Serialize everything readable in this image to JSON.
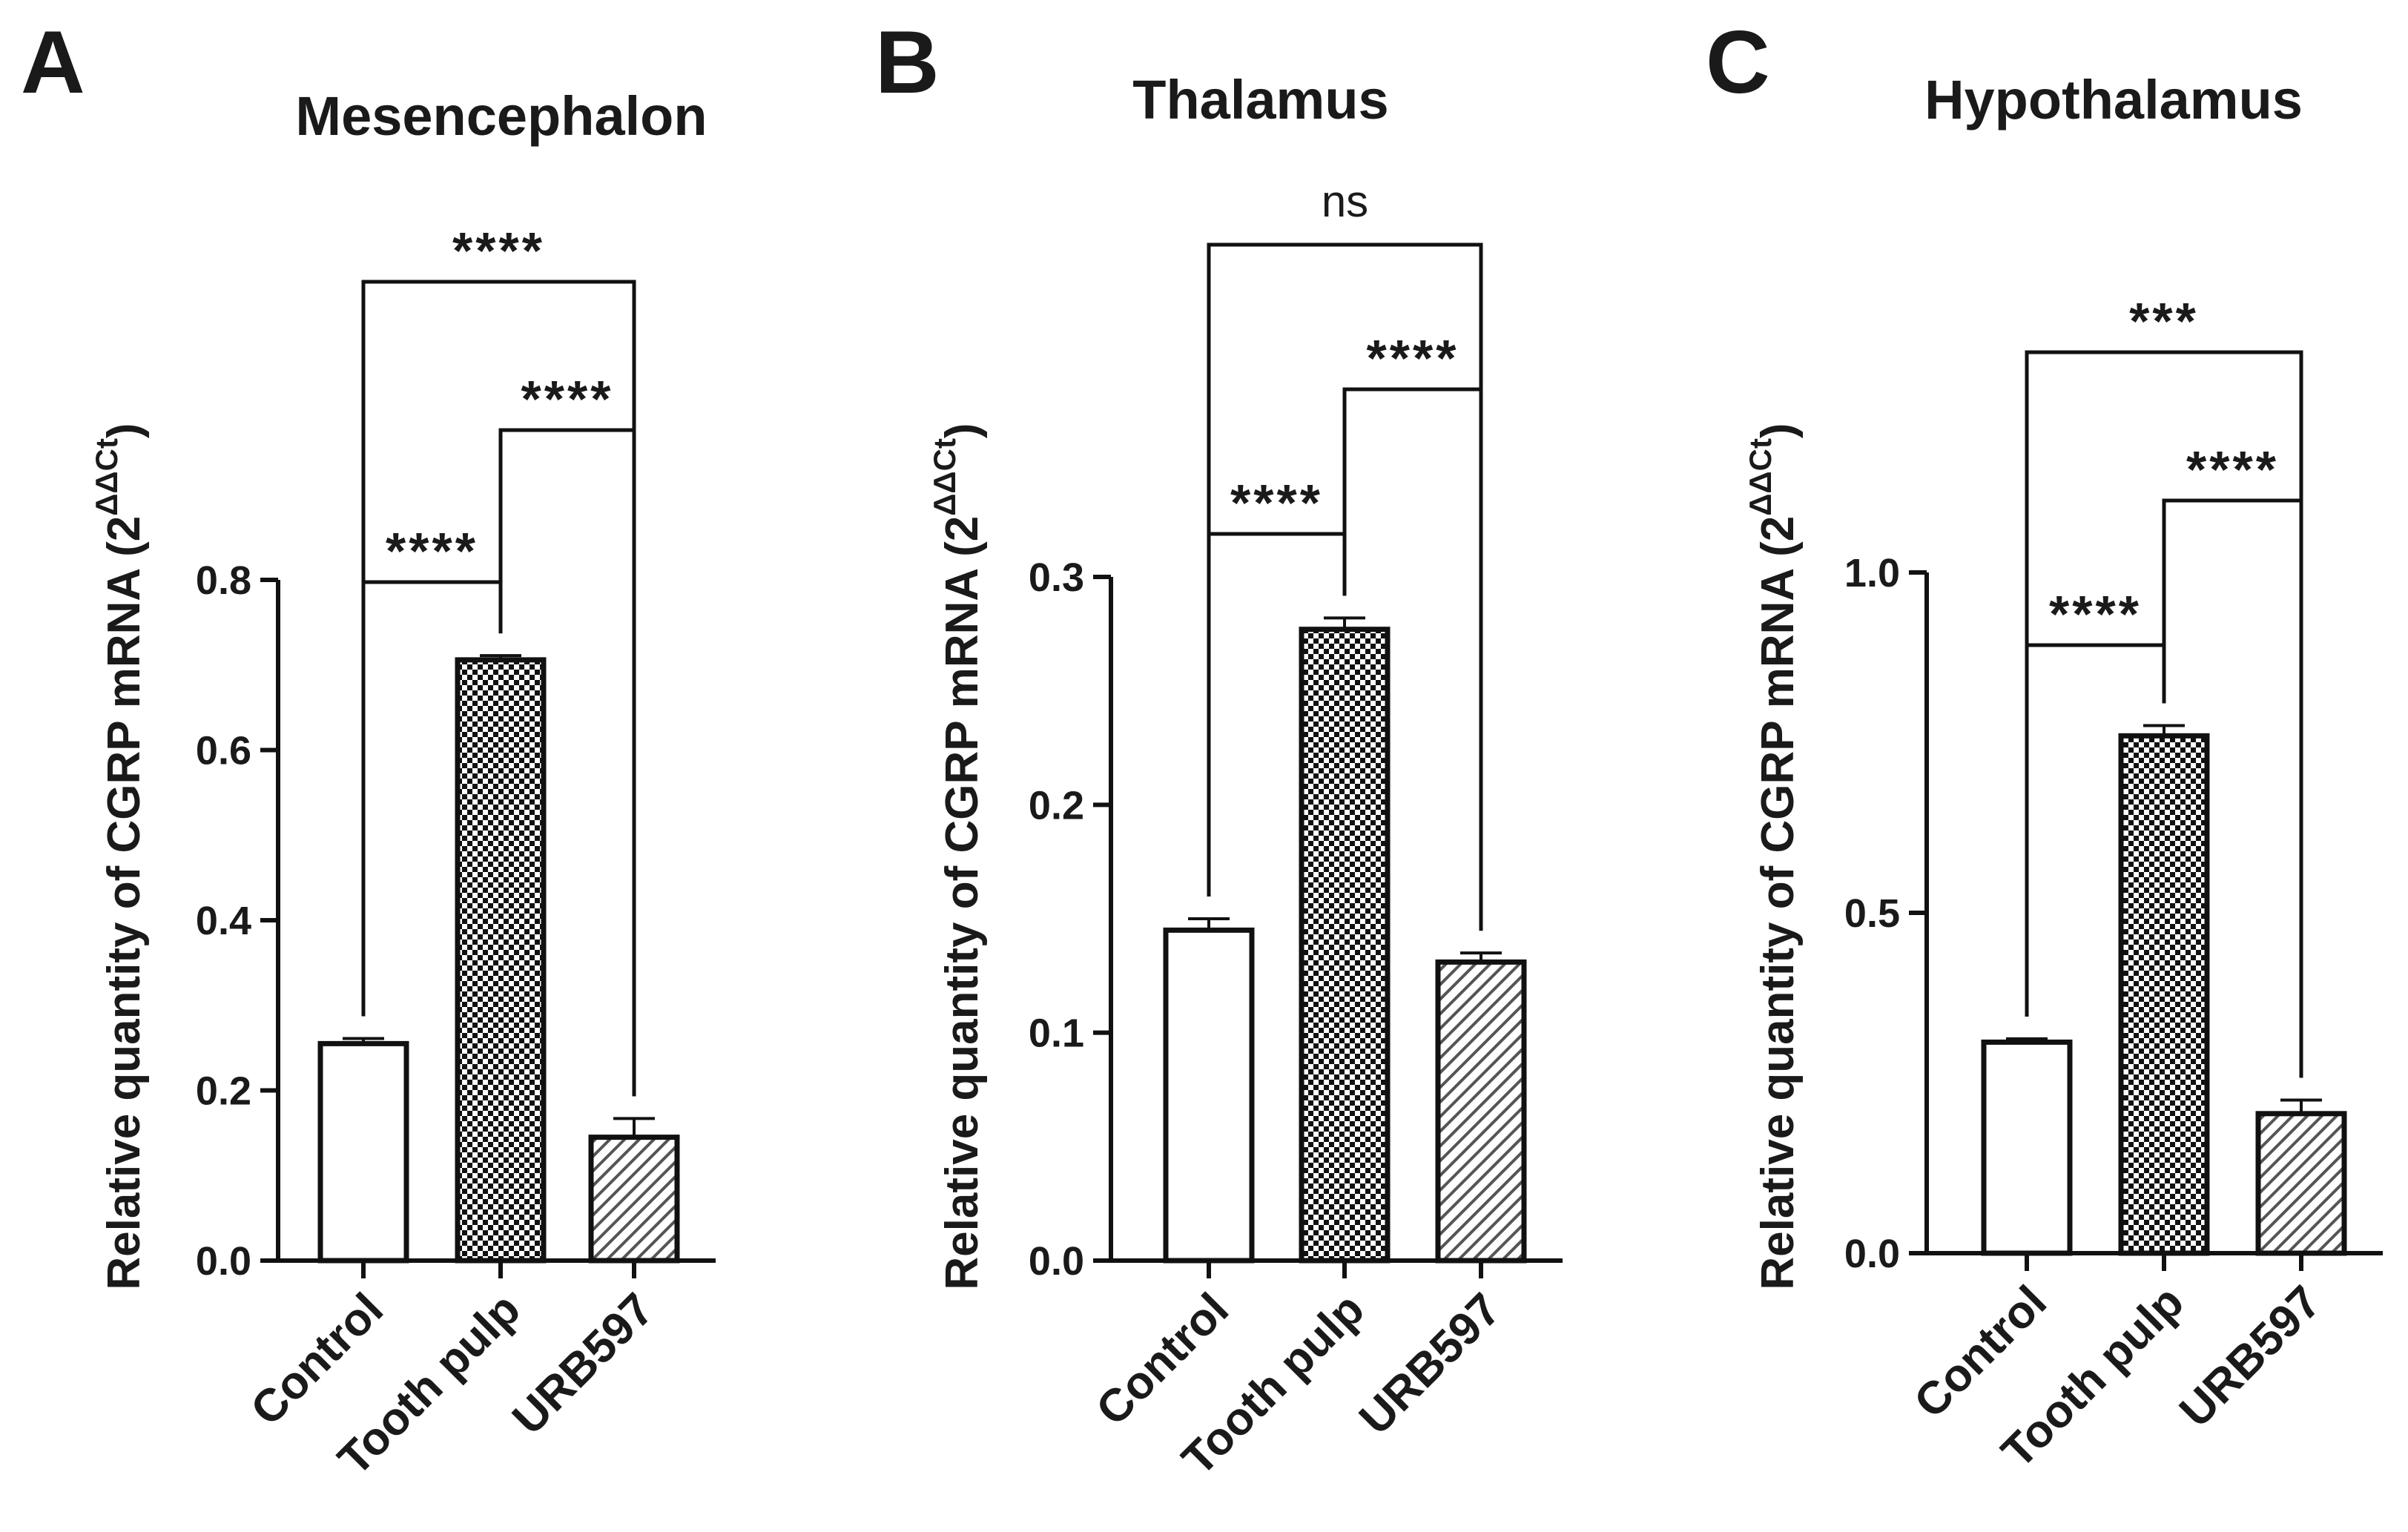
{
  "chart_data": [
    {
      "type": "bar",
      "panel_letter": "A",
      "title": "Mesencephalon",
      "categories": [
        "Control",
        "Tooth pulp",
        "URB597"
      ],
      "values": [
        0.255,
        0.706,
        0.145
      ],
      "errors": [
        0.006,
        0.005,
        0.022
      ],
      "ylabel": "Relative quantity of CGRP mRNA (2",
      "ylabel_sup": "ΔΔCt",
      "ylabel_close": ")",
      "ylim": [
        0,
        0.8
      ],
      "yticks": [
        0.0,
        0.2,
        0.4,
        0.6,
        0.8
      ],
      "ytick_labels": [
        "0.0",
        "0.2",
        "0.4",
        "0.6",
        "0.8"
      ],
      "patterns": [
        "none",
        "checker",
        "hatch"
      ],
      "comparisons": [
        {
          "from": 0,
          "to": 1,
          "label": "****"
        },
        {
          "from": 1,
          "to": 2,
          "label": "****"
        },
        {
          "from": 0,
          "to": 2,
          "label": "****"
        }
      ]
    },
    {
      "type": "bar",
      "panel_letter": "B",
      "title": "Thalamus",
      "categories": [
        "Control",
        "Tooth pulp",
        "URB597"
      ],
      "values": [
        0.145,
        0.277,
        0.131
      ],
      "errors": [
        0.005,
        0.005,
        0.004
      ],
      "ylabel": "Relative quantity of CGRP mRNA (2",
      "ylabel_sup": "ΔΔCt",
      "ylabel_close": ")",
      "ylim": [
        0,
        0.3
      ],
      "yticks": [
        0.0,
        0.1,
        0.2,
        0.3
      ],
      "ytick_labels": [
        "0.0",
        "0.1",
        "0.2",
        "0.3"
      ],
      "patterns": [
        "none",
        "checker",
        "hatch"
      ],
      "comparisons": [
        {
          "from": 0,
          "to": 1,
          "label": "****"
        },
        {
          "from": 1,
          "to": 2,
          "label": "****"
        },
        {
          "from": 0,
          "to": 2,
          "label": "ns"
        }
      ]
    },
    {
      "type": "bar",
      "panel_letter": "C",
      "title": "Hypothalamus",
      "categories": [
        "Control",
        "Tooth pulp",
        "URB597"
      ],
      "values": [
        0.31,
        0.76,
        0.205
      ],
      "errors": [
        0.005,
        0.015,
        0.02
      ],
      "ylabel": "Relative quantity of CGRP mRNA (2",
      "ylabel_sup": "ΔΔCt",
      "ylabel_close": ")",
      "ylim": [
        0,
        1.0
      ],
      "yticks": [
        0.0,
        0.5,
        1.0
      ],
      "ytick_labels": [
        "0.0",
        "0.5",
        "1.0"
      ],
      "patterns": [
        "none",
        "checker",
        "hatch"
      ],
      "comparisons": [
        {
          "from": 0,
          "to": 1,
          "label": "****"
        },
        {
          "from": 1,
          "to": 2,
          "label": "****"
        },
        {
          "from": 0,
          "to": 2,
          "label": "***"
        }
      ]
    }
  ]
}
